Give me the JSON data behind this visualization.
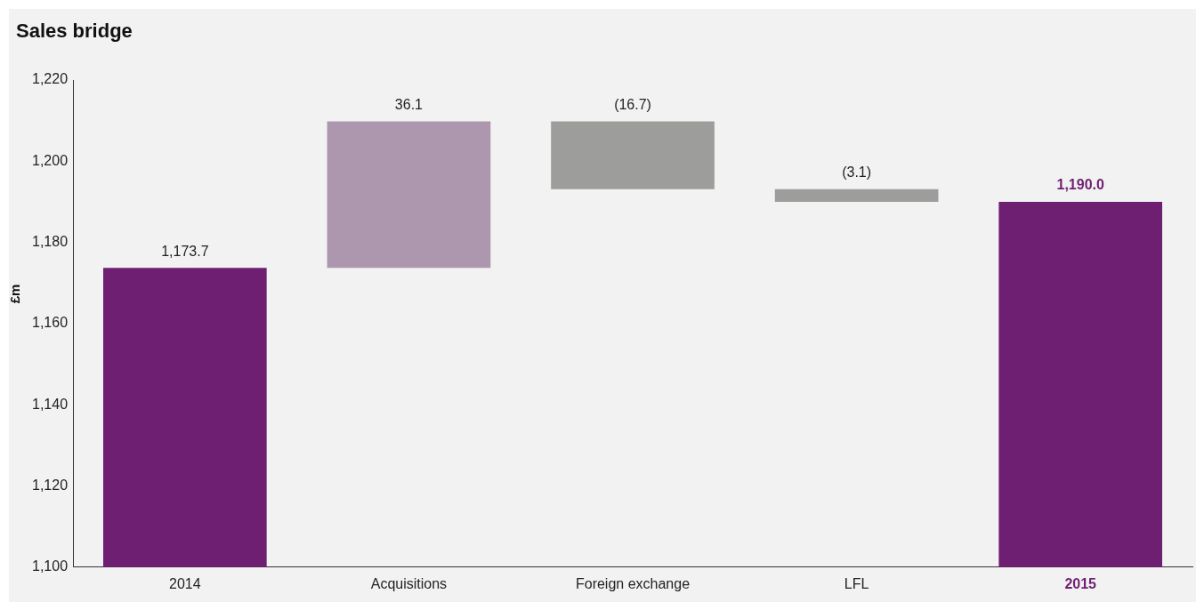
{
  "chart_data": {
    "type": "bar",
    "title": "Sales bridge",
    "ylabel": "£m",
    "categories": [
      "2014",
      "Acquisitions",
      "Foreign exchange",
      "LFL",
      "2015"
    ],
    "values": [
      1173.7,
      36.1,
      -16.7,
      -3.1,
      1190.0
    ],
    "base": [
      null,
      1173.7,
      1209.8,
      1193.1,
      null
    ],
    "colors": [
      "#6e1f72",
      "#ad97ae",
      "#9d9d9c",
      "#9d9d9c",
      "#6e1f72"
    ],
    "value_labels": [
      "1,173.7",
      "36.1",
      "(16.7)",
      "(3.1)",
      "1,190.0"
    ],
    "ylim": [
      1100,
      1220
    ],
    "yticks": [
      {
        "value": 1100,
        "label": "1,100"
      },
      {
        "value": 1120,
        "label": "1,120"
      },
      {
        "value": 1140,
        "label": "1,140"
      },
      {
        "value": 1160,
        "label": "1,160"
      },
      {
        "value": 1180,
        "label": "1,180"
      },
      {
        "value": 1200,
        "label": "1,200"
      },
      {
        "value": 1220,
        "label": "1,220"
      }
    ],
    "grid": false,
    "legend": false
  }
}
